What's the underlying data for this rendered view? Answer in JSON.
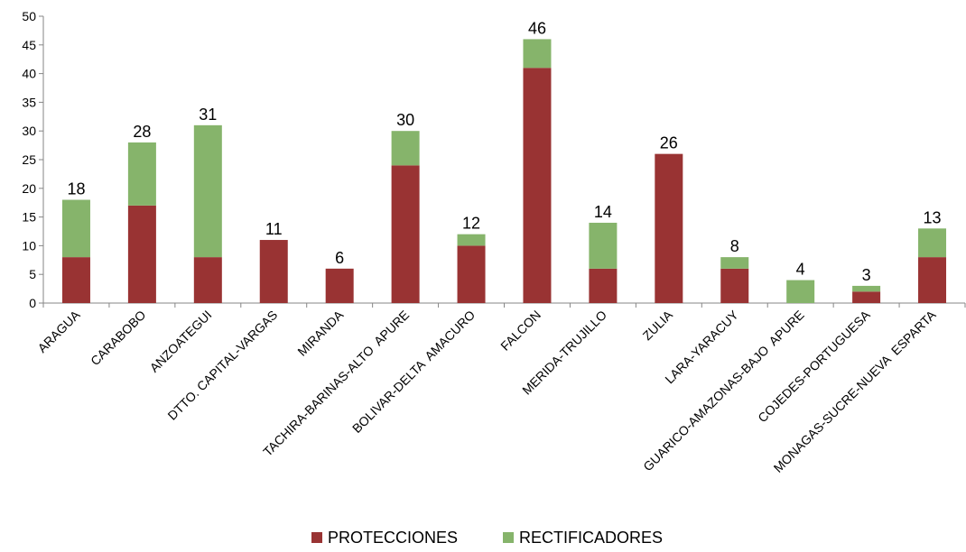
{
  "chart_data": {
    "type": "bar",
    "stacked": true,
    "categories": [
      "ARAGUA",
      "CARABOBO",
      "ANZOATEGUI",
      "DTTO. CAPITAL-VARGAS",
      "MIRANDA",
      "TACHIRA-BARINAS-ALTO  APURE",
      "BOLIVAR-DELTA  AMACURO",
      "FALCON",
      "MERIDA-TRUJILLO",
      "ZULIA",
      "LARA-YARACUY",
      "GUARICO-AMAZONAS-BAJO  APURE",
      "COJEDES-PORTUGUESA",
      "MONAGAS-SUCRE-NUEVA  ESPARTA"
    ],
    "series": [
      {
        "name": "PROTECCIONES",
        "color": "#993333",
        "values": [
          8,
          17,
          8,
          11,
          6,
          24,
          10,
          41,
          6,
          26,
          6,
          0,
          2,
          8
        ]
      },
      {
        "name": "RECTIFICADORES",
        "color": "#86b46b",
        "values": [
          10,
          11,
          23,
          0,
          0,
          6,
          2,
          5,
          8,
          0,
          2,
          4,
          1,
          5
        ]
      }
    ],
    "totals": [
      18,
      28,
      31,
      11,
      6,
      30,
      12,
      46,
      14,
      26,
      8,
      4,
      3,
      13
    ],
    "yticks": [
      0,
      5,
      10,
      15,
      20,
      25,
      30,
      35,
      40,
      45,
      50
    ],
    "ylim": [
      0,
      50
    ],
    "grid": false,
    "legend": "bottom-center",
    "title": "",
    "xlabel": "",
    "ylabel": ""
  }
}
